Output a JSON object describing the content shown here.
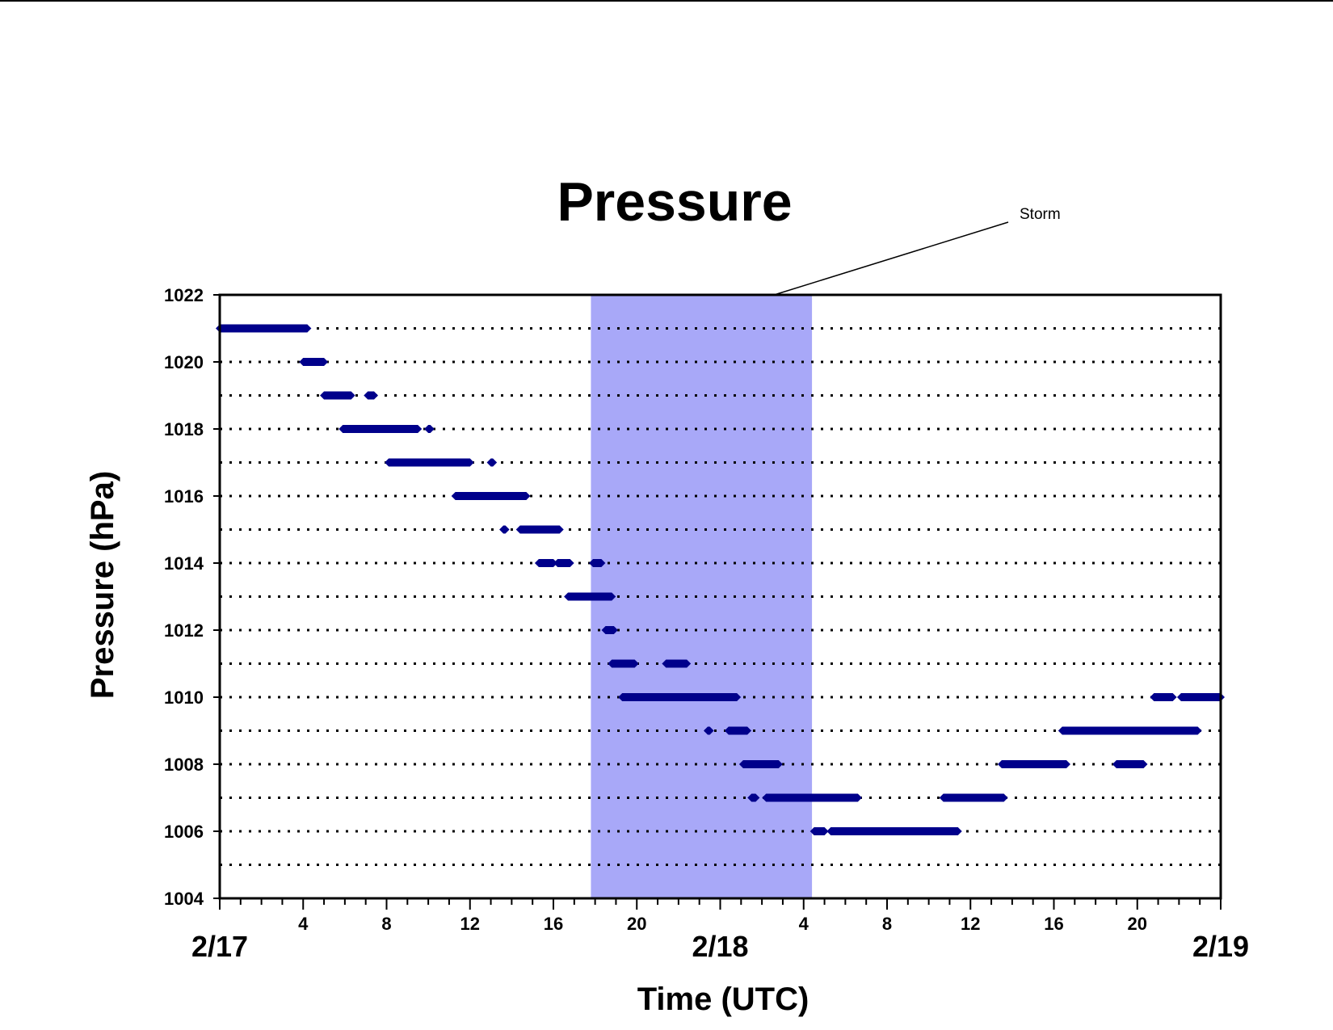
{
  "chart_data": {
    "type": "scatter",
    "title": "Pressure",
    "xlabel": "Time (UTC)",
    "ylabel": "Pressure (hPa)",
    "ylim": [
      1004,
      1022
    ],
    "y_ticks": [
      1004,
      1006,
      1008,
      1010,
      1012,
      1014,
      1016,
      1018,
      1020,
      1022
    ],
    "xlim_hours": [
      0,
      48
    ],
    "x_tick_labels": [
      {
        "hour": 4,
        "label": "4"
      },
      {
        "hour": 8,
        "label": "8"
      },
      {
        "hour": 12,
        "label": "12"
      },
      {
        "hour": 16,
        "label": "16"
      },
      {
        "hour": 20,
        "label": "20"
      },
      {
        "hour": 28,
        "label": "4"
      },
      {
        "hour": 32,
        "label": "8"
      },
      {
        "hour": 36,
        "label": "12"
      },
      {
        "hour": 40,
        "label": "16"
      },
      {
        "hour": 44,
        "label": "20"
      }
    ],
    "x_date_labels": [
      {
        "hour": 0,
        "label": "2/17"
      },
      {
        "hour": 24,
        "label": "2/18"
      },
      {
        "hour": 48,
        "label": "2/19"
      }
    ],
    "gridlines": "horizontal dotted at every 1 hPa",
    "marker_color": "#00008B",
    "shaded_region": {
      "start_hour": 17.8,
      "end_hour": 28.4,
      "color": "#A8A8F8",
      "label": "Storm"
    },
    "annotation": "Storm",
    "series": [
      {
        "segments": [
          {
            "y": 1021,
            "x0": 0.0,
            "x1": 4.2
          },
          {
            "y": 1020,
            "x0": 4.0,
            "x1": 5.0
          },
          {
            "y": 1019,
            "x0": 5.0,
            "x1": 6.0
          },
          {
            "y": 1019,
            "x0": 6.0,
            "x1": 6.3
          },
          {
            "y": 1019,
            "x0": 7.1,
            "x1": 7.4
          },
          {
            "y": 1018,
            "x0": 5.9,
            "x1": 9.5
          },
          {
            "y": 1018,
            "x0": 10.0,
            "x1": 10.1
          },
          {
            "y": 1017,
            "x0": 8.1,
            "x1": 12.0
          },
          {
            "y": 1017,
            "x0": 13.0,
            "x1": 13.1
          },
          {
            "y": 1016,
            "x0": 11.3,
            "x1": 14.7
          },
          {
            "y": 1015,
            "x0": 13.6,
            "x1": 13.7
          },
          {
            "y": 1015,
            "x0": 14.4,
            "x1": 16.3
          },
          {
            "y": 1014,
            "x0": 15.3,
            "x1": 16.0
          },
          {
            "y": 1014,
            "x0": 16.2,
            "x1": 16.8
          },
          {
            "y": 1014,
            "x0": 17.9,
            "x1": 18.3
          },
          {
            "y": 1013,
            "x0": 16.7,
            "x1": 18.8
          },
          {
            "y": 1012,
            "x0": 18.5,
            "x1": 18.9
          },
          {
            "y": 1011,
            "x0": 18.8,
            "x1": 19.9
          },
          {
            "y": 1011,
            "x0": 21.4,
            "x1": 22.4
          },
          {
            "y": 1010,
            "x0": 19.3,
            "x1": 24.8
          },
          {
            "y": 1009,
            "x0": 23.4,
            "x1": 23.5
          },
          {
            "y": 1009,
            "x0": 24.4,
            "x1": 25.3
          },
          {
            "y": 1008,
            "x0": 25.1,
            "x1": 26.8
          },
          {
            "y": 1007,
            "x0": 25.5,
            "x1": 25.7
          },
          {
            "y": 1007,
            "x0": 26.2,
            "x1": 30.6
          },
          {
            "y": 1006,
            "x0": 28.5,
            "x1": 29.0
          },
          {
            "y": 1006,
            "x0": 29.3,
            "x1": 35.4
          },
          {
            "y": 1007,
            "x0": 34.7,
            "x1": 37.6
          },
          {
            "y": 1008,
            "x0": 37.5,
            "x1": 40.6
          },
          {
            "y": 1008,
            "x0": 43.0,
            "x1": 44.3
          },
          {
            "y": 1009,
            "x0": 40.4,
            "x1": 46.9
          },
          {
            "y": 1010,
            "x0": 44.8,
            "x1": 45.7
          },
          {
            "y": 1010,
            "x0": 46.1,
            "x1": 48.0
          }
        ]
      }
    ]
  }
}
